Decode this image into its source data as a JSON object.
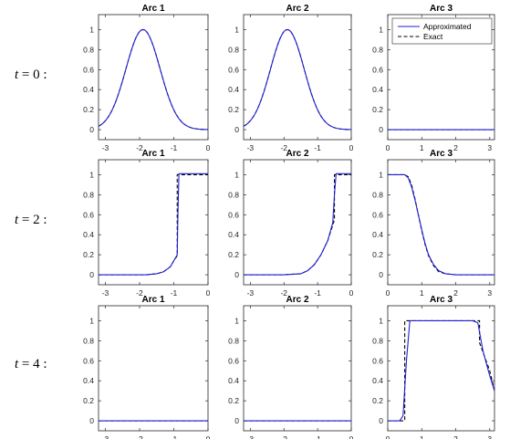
{
  "rows": [
    {
      "var": "t",
      "eq": " = ",
      "val": "0",
      "colon": " :"
    },
    {
      "var": "t",
      "eq": " = ",
      "val": "2",
      "colon": " :"
    },
    {
      "var": "t",
      "eq": " = ",
      "val": "4",
      "colon": " :"
    }
  ],
  "legend": {
    "approximated": "Approximated",
    "exact": "Exact"
  },
  "colors": {
    "approximated": "#1f1fd0",
    "exact": "#000000"
  },
  "chart_data": [
    {
      "type": "line",
      "title": "Arc 1",
      "xlim": [
        -3.2,
        0
      ],
      "ylim": [
        -0.1,
        1.15
      ],
      "xticks": [
        -3,
        -2,
        -1,
        0
      ],
      "yticks": [
        0,
        0.2,
        0.4,
        0.6,
        0.8,
        1
      ],
      "xticklabels": [
        "-3",
        "-2",
        "-1",
        "0"
      ],
      "yticklabels": [
        "0",
        "0.2",
        "0.4",
        "0.6",
        "0.8",
        "1"
      ],
      "curve": {
        "kind": "gauss",
        "center": -1.9,
        "sigma": 0.5
      },
      "series": [
        {
          "name": "Approximated",
          "x": [
            -3.2,
            -3,
            -2.6,
            -2.3,
            -2.1,
            -1.9,
            -1.7,
            -1.5,
            -1.2,
            -0.8,
            -0.4,
            0
          ],
          "y": [
            0.06,
            0.12,
            0.38,
            0.73,
            0.92,
            1.0,
            0.92,
            0.73,
            0.38,
            0.09,
            0.01,
            0.0
          ]
        },
        {
          "name": "Exact",
          "x": [
            -3.2,
            -3,
            -2.6,
            -2.3,
            -2.1,
            -1.9,
            -1.7,
            -1.5,
            -1.2,
            -0.8,
            -0.4,
            0
          ],
          "y": [
            0.06,
            0.12,
            0.38,
            0.73,
            0.92,
            1.0,
            0.92,
            0.73,
            0.38,
            0.09,
            0.01,
            0.0
          ]
        }
      ]
    },
    {
      "type": "line",
      "title": "Arc 2",
      "xlim": [
        -3.2,
        0
      ],
      "ylim": [
        -0.1,
        1.15
      ],
      "xticks": [
        -3,
        -2,
        -1,
        0
      ],
      "yticks": [
        0,
        0.2,
        0.4,
        0.6,
        0.8,
        1
      ],
      "xticklabels": [
        "-3",
        "-2",
        "-1",
        "0"
      ],
      "yticklabels": [
        "0",
        "0.2",
        "0.4",
        "0.6",
        "0.8",
        "1"
      ],
      "curve": {
        "kind": "gauss",
        "center": -1.9,
        "sigma": 0.5
      },
      "series": [
        {
          "name": "Approximated",
          "x": [
            -3.2,
            -3,
            -2.6,
            -2.3,
            -2.1,
            -1.9,
            -1.7,
            -1.5,
            -1.2,
            -0.8,
            -0.4,
            0
          ],
          "y": [
            0.06,
            0.12,
            0.38,
            0.73,
            0.92,
            1.0,
            0.92,
            0.73,
            0.38,
            0.09,
            0.01,
            0.0
          ]
        },
        {
          "name": "Exact",
          "x": [
            -3.2,
            -3,
            -2.6,
            -2.3,
            -2.1,
            -1.9,
            -1.7,
            -1.5,
            -1.2,
            -0.8,
            -0.4,
            0
          ],
          "y": [
            0.06,
            0.12,
            0.38,
            0.73,
            0.92,
            1.0,
            0.92,
            0.73,
            0.38,
            0.09,
            0.01,
            0.0
          ]
        }
      ]
    },
    {
      "type": "line",
      "title": "Arc 3",
      "xlim": [
        0,
        3.14
      ],
      "ylim": [
        -0.1,
        1.15
      ],
      "xticks": [
        0,
        1,
        2,
        3
      ],
      "yticks": [
        0,
        0.2,
        0.4,
        0.6,
        0.8,
        1
      ],
      "xticklabels": [
        "0",
        "1",
        "2",
        "3"
      ],
      "yticklabels": [
        "0",
        "0.2",
        "0.4",
        "0.6",
        "0.8",
        "1"
      ],
      "legend": "top-right",
      "series": [
        {
          "name": "Approximated",
          "x": [
            0,
            3.14
          ],
          "y": [
            0,
            0
          ]
        },
        {
          "name": "Exact",
          "x": [
            0,
            3.14
          ],
          "y": [
            0,
            0
          ]
        }
      ]
    },
    {
      "type": "line",
      "title": "Arc 1",
      "xlim": [
        -3.2,
        0
      ],
      "ylim": [
        -0.1,
        1.15
      ],
      "xticks": [
        -3,
        -2,
        -1,
        0
      ],
      "yticks": [
        0,
        0.2,
        0.4,
        0.6,
        0.8,
        1
      ],
      "xticklabels": [
        "-3",
        "-2",
        "-1",
        "0"
      ],
      "yticklabels": [
        "0",
        "0.2",
        "0.4",
        "0.6",
        "0.8",
        "1"
      ],
      "series": [
        {
          "name": "Approximated",
          "x": [
            -3.2,
            -2.2,
            -1.8,
            -1.5,
            -1.3,
            -1.1,
            -1.0,
            -0.9,
            -0.88,
            -0.85,
            -0.6,
            0
          ],
          "y": [
            0,
            0,
            0.0,
            0.01,
            0.03,
            0.08,
            0.14,
            0.2,
            0.6,
            1.01,
            1.01,
            1.01
          ]
        },
        {
          "name": "Exact",
          "x": [
            -3.2,
            -2.2,
            -1.8,
            -1.5,
            -1.3,
            -1.1,
            -1.0,
            -0.9,
            -0.9,
            -0.6,
            0
          ],
          "y": [
            0,
            0,
            0.0,
            0.01,
            0.03,
            0.08,
            0.14,
            0.19,
            1.0,
            1.0,
            1.0
          ]
        }
      ]
    },
    {
      "type": "line",
      "title": "Arc 2",
      "xlim": [
        -3.2,
        0
      ],
      "ylim": [
        -0.1,
        1.15
      ],
      "xticks": [
        -3,
        -2,
        -1,
        0
      ],
      "yticks": [
        0,
        0.2,
        0.4,
        0.6,
        0.8,
        1
      ],
      "xticklabels": [
        "-3",
        "-2",
        "-1",
        "0"
      ],
      "yticklabels": [
        "0",
        "0.2",
        "0.4",
        "0.6",
        "0.8",
        "1"
      ],
      "series": [
        {
          "name": "Approximated",
          "x": [
            -3.2,
            -2.0,
            -1.5,
            -1.3,
            -1.1,
            -0.9,
            -0.7,
            -0.55,
            -0.5,
            -0.45,
            -0.2,
            0
          ],
          "y": [
            0,
            0,
            0.01,
            0.04,
            0.1,
            0.2,
            0.34,
            0.52,
            0.8,
            1.01,
            1.01,
            1.01
          ]
        },
        {
          "name": "Exact",
          "x": [
            -3.2,
            -2.0,
            -1.5,
            -1.3,
            -1.1,
            -0.9,
            -0.7,
            -0.5,
            -0.5,
            -0.2,
            0
          ],
          "y": [
            0,
            0,
            0.01,
            0.04,
            0.1,
            0.2,
            0.34,
            0.55,
            1.0,
            1.0,
            1.0
          ]
        }
      ]
    },
    {
      "type": "line",
      "title": "Arc 3",
      "xlim": [
        0,
        3.14
      ],
      "ylim": [
        -0.1,
        1.15
      ],
      "xticks": [
        0,
        1,
        2,
        3
      ],
      "yticks": [
        0,
        0.2,
        0.4,
        0.6,
        0.8,
        1
      ],
      "xticklabels": [
        "0",
        "1",
        "2",
        "3"
      ],
      "yticklabels": [
        "0",
        "0.2",
        "0.4",
        "0.6",
        "0.8",
        "1"
      ],
      "series": [
        {
          "name": "Approximated",
          "x": [
            0,
            0.4,
            0.5,
            0.6,
            0.7,
            0.8,
            0.9,
            1.0,
            1.1,
            1.2,
            1.35,
            1.5,
            1.7,
            2.0,
            3.14
          ],
          "y": [
            1,
            1,
            1,
            0.97,
            0.88,
            0.75,
            0.6,
            0.45,
            0.31,
            0.2,
            0.1,
            0.04,
            0.01,
            0,
            0
          ]
        },
        {
          "name": "Exact",
          "x": [
            0,
            0.4,
            0.5,
            0.6,
            0.7,
            0.8,
            0.9,
            1.0,
            1.1,
            1.2,
            1.35,
            1.5,
            1.7,
            2.0,
            3.14
          ],
          "y": [
            1,
            1,
            1,
            0.98,
            0.9,
            0.76,
            0.6,
            0.44,
            0.3,
            0.19,
            0.09,
            0.03,
            0.01,
            0,
            0
          ]
        }
      ]
    },
    {
      "type": "line",
      "title": "Arc 1",
      "xlim": [
        -3.2,
        0
      ],
      "ylim": [
        -0.1,
        1.15
      ],
      "xticks": [
        -3,
        -2,
        -1,
        0
      ],
      "yticks": [
        0,
        0.2,
        0.4,
        0.6,
        0.8,
        1
      ],
      "xticklabels": [
        "-3",
        "-2",
        "-1",
        "0"
      ],
      "yticklabels": [
        "0",
        "0.2",
        "0.4",
        "0.6",
        "0.8",
        "1"
      ],
      "series": [
        {
          "name": "Approximated",
          "x": [
            -3.2,
            0
          ],
          "y": [
            0,
            0
          ]
        },
        {
          "name": "Exact",
          "x": [
            -3.2,
            0
          ],
          "y": [
            0,
            0
          ]
        }
      ]
    },
    {
      "type": "line",
      "title": "Arc 2",
      "xlim": [
        -3.2,
        0
      ],
      "ylim": [
        -0.1,
        1.15
      ],
      "xticks": [
        -3,
        -2,
        -1,
        0
      ],
      "yticks": [
        0,
        0.2,
        0.4,
        0.6,
        0.8,
        1
      ],
      "xticklabels": [
        "-3",
        "-2",
        "-1",
        "0"
      ],
      "yticklabels": [
        "0",
        "0.2",
        "0.4",
        "0.6",
        "0.8",
        "1"
      ],
      "series": [
        {
          "name": "Approximated",
          "x": [
            -3.2,
            0
          ],
          "y": [
            0,
            0
          ]
        },
        {
          "name": "Exact",
          "x": [
            -3.2,
            0
          ],
          "y": [
            0,
            0
          ]
        }
      ]
    },
    {
      "type": "line",
      "title": "Arc 3",
      "xlim": [
        0,
        3.14
      ],
      "ylim": [
        -0.1,
        1.15
      ],
      "xticks": [
        0,
        1,
        2,
        3
      ],
      "yticks": [
        0,
        0.2,
        0.4,
        0.6,
        0.8,
        1
      ],
      "xticklabels": [
        "0",
        "1",
        "2",
        "3"
      ],
      "yticklabels": [
        "0",
        "0.2",
        "0.4",
        "0.6",
        "0.8",
        "1"
      ],
      "series": [
        {
          "name": "Approximated",
          "x": [
            0,
            0.35,
            0.45,
            0.55,
            0.65,
            2.5,
            2.65,
            2.8,
            3.0,
            3.14
          ],
          "y": [
            0,
            0,
            0.05,
            0.6,
            1.0,
            1.0,
            0.98,
            0.7,
            0.45,
            0.3
          ]
        },
        {
          "name": "Exact",
          "x": [
            0,
            0.4,
            0.5,
            0.5,
            2.7,
            2.7,
            3.0,
            3.14
          ],
          "y": [
            0,
            0,
            0,
            1.0,
            1.0,
            0.78,
            0.5,
            0.3
          ]
        }
      ]
    }
  ]
}
